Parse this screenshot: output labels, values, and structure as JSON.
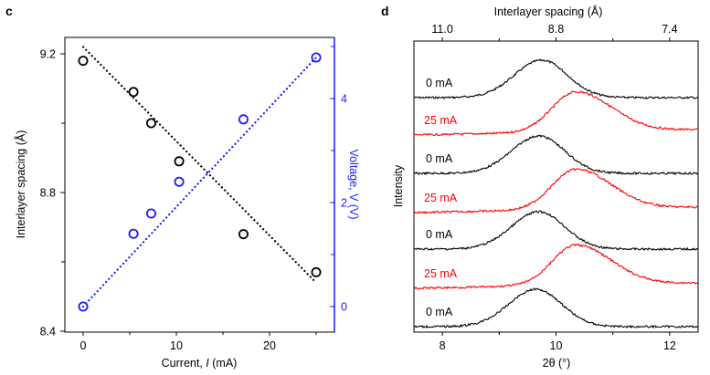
{
  "chart_data": [
    {
      "panel": "c",
      "type": "scatter",
      "title": "",
      "xlabel_prefix": "Current, ",
      "xlabel_var": "I",
      "xlabel_suffix": " (mA)",
      "ylabel": "Interlayer spacing (Å)",
      "y2label": "Voltage, V (V)",
      "xlim": [
        -2,
        27
      ],
      "ylim": [
        8.4,
        9.26
      ],
      "y2lim": [
        -0.5,
        5.15
      ],
      "xticks": [
        0,
        10,
        20
      ],
      "xminor": [
        5,
        15,
        25
      ],
      "yticks": [
        9.2,
        8.8,
        8.4
      ],
      "yminor": [
        9.0,
        8.6
      ],
      "y2ticks": [
        0,
        2,
        4
      ],
      "y2minor": [
        1,
        3,
        5
      ],
      "series": [
        {
          "name": "Interlayer spacing",
          "axis": "left",
          "color": "#000000",
          "x": [
            0,
            5.4,
            7.3,
            10.3,
            17.2,
            25
          ],
          "y": [
            9.18,
            9.09,
            9.0,
            8.89,
            8.68,
            8.57
          ],
          "fit": {
            "x": [
              0,
              25
            ],
            "y": [
              9.22,
              8.54
            ]
          }
        },
        {
          "name": "Voltage",
          "axis": "right",
          "color": "#1a1aff",
          "x": [
            0,
            5.4,
            7.3,
            10.3,
            17.2,
            25
          ],
          "y": [
            0,
            1.4,
            1.79,
            2.4,
            3.6,
            4.79
          ],
          "fit": {
            "x": [
              0,
              25
            ],
            "y": [
              0,
              4.79
            ]
          }
        }
      ],
      "grid": false,
      "legend": "none"
    },
    {
      "panel": "d",
      "type": "line",
      "title": "",
      "xlabel": "2θ (°)",
      "ylabel": "Intensity",
      "top_xlabel": "Interlayer spacing (Å)",
      "xlim": [
        7.5,
        12.5
      ],
      "xticks": [
        8,
        10,
        12
      ],
      "xminor": [
        9,
        11
      ],
      "top_xticks": [
        {
          "pos": 8,
          "label": "11.0"
        },
        {
          "pos": 10,
          "label": "8.8"
        },
        {
          "pos": 12,
          "label": "7.4"
        }
      ],
      "top_xminor": [
        9,
        11
      ],
      "series": [
        {
          "name": "0 mA",
          "color": "#000000",
          "peak_2theta": 9.75,
          "offset": 7.0
        },
        {
          "name": "25 mA",
          "color": "#ff0000",
          "peak_2theta": 10.35,
          "offset": 6.0
        },
        {
          "name": "0 mA",
          "color": "#000000",
          "peak_2theta": 9.7,
          "offset": 5.0
        },
        {
          "name": "25 mA",
          "color": "#ff0000",
          "peak_2theta": 10.35,
          "offset": 4.0
        },
        {
          "name": "0 mA",
          "color": "#000000",
          "peak_2theta": 9.7,
          "offset": 3.0
        },
        {
          "name": "25 mA",
          "color": "#ff0000",
          "peak_2theta": 10.35,
          "offset": 2.0
        },
        {
          "name": "0 mA",
          "color": "#000000",
          "peak_2theta": 9.65,
          "offset": 1.0
        }
      ],
      "grid": false,
      "legend": "inline-left"
    }
  ]
}
